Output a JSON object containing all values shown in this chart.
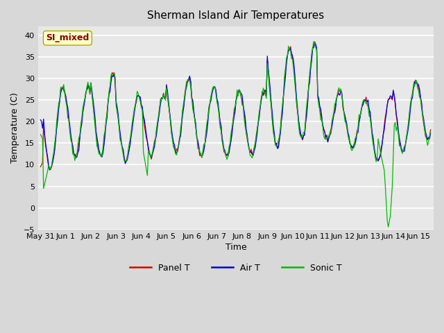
{
  "title": "Sherman Island Air Temperatures",
  "xlabel": "Time",
  "ylabel": "Temperature (C)",
  "ylim": [
    -5,
    42
  ],
  "yticks": [
    -5,
    0,
    5,
    10,
    15,
    20,
    25,
    30,
    35,
    40
  ],
  "x_tick_labels": [
    "May 31",
    "Jun 1",
    "Jun 2",
    "Jun 3",
    "Jun 4",
    "Jun 5",
    "Jun 6",
    "Jun 7",
    "Jun 8",
    "Jun 9",
    "Jun 10",
    "Jun 11",
    "Jun 12",
    "Jun 13",
    "Jun 14",
    "Jun 15"
  ],
  "bg_color": "#d8d8d8",
  "plot_bg_color": "#e8e8e8",
  "panel_color": "#dd0000",
  "air_color": "#0000dd",
  "sonic_color": "#00bb00",
  "legend_label_panel": "Panel T",
  "legend_label_air": "Air T",
  "legend_label_sonic": "Sonic T",
  "annotation_text": "SI_mixed",
  "annotation_bg": "#ffffcc",
  "annotation_fg": "#880000"
}
